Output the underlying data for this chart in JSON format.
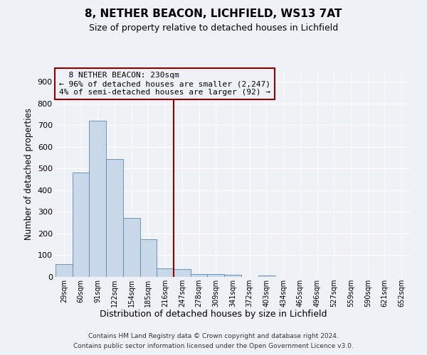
{
  "title": "8, NETHER BEACON, LICHFIELD, WS13 7AT",
  "subtitle": "Size of property relative to detached houses in Lichfield",
  "xlabel": "Distribution of detached houses by size in Lichfield",
  "ylabel": "Number of detached properties",
  "bar_labels": [
    "29sqm",
    "60sqm",
    "91sqm",
    "122sqm",
    "154sqm",
    "185sqm",
    "216sqm",
    "247sqm",
    "278sqm",
    "309sqm",
    "341sqm",
    "372sqm",
    "403sqm",
    "434sqm",
    "465sqm",
    "496sqm",
    "527sqm",
    "559sqm",
    "590sqm",
    "621sqm",
    "652sqm"
  ],
  "bar_heights": [
    60,
    480,
    720,
    543,
    272,
    172,
    40,
    35,
    13,
    13,
    10,
    0,
    8,
    0,
    0,
    0,
    0,
    0,
    0,
    0,
    0
  ],
  "bar_color": "#c8d8e8",
  "bar_edge_color": "#5a8ab0",
  "vline_color": "#8b0000",
  "annotation_box_color": "#8b0000",
  "ylim": [
    0,
    950
  ],
  "yticks": [
    0,
    100,
    200,
    300,
    400,
    500,
    600,
    700,
    800,
    900
  ],
  "footer_line1": "Contains HM Land Registry data © Crown copyright and database right 2024.",
  "footer_line2": "Contains public sector information licensed under the Open Government Licence v3.0.",
  "bg_color": "#eef2f7",
  "grid_color": "#ffffff"
}
